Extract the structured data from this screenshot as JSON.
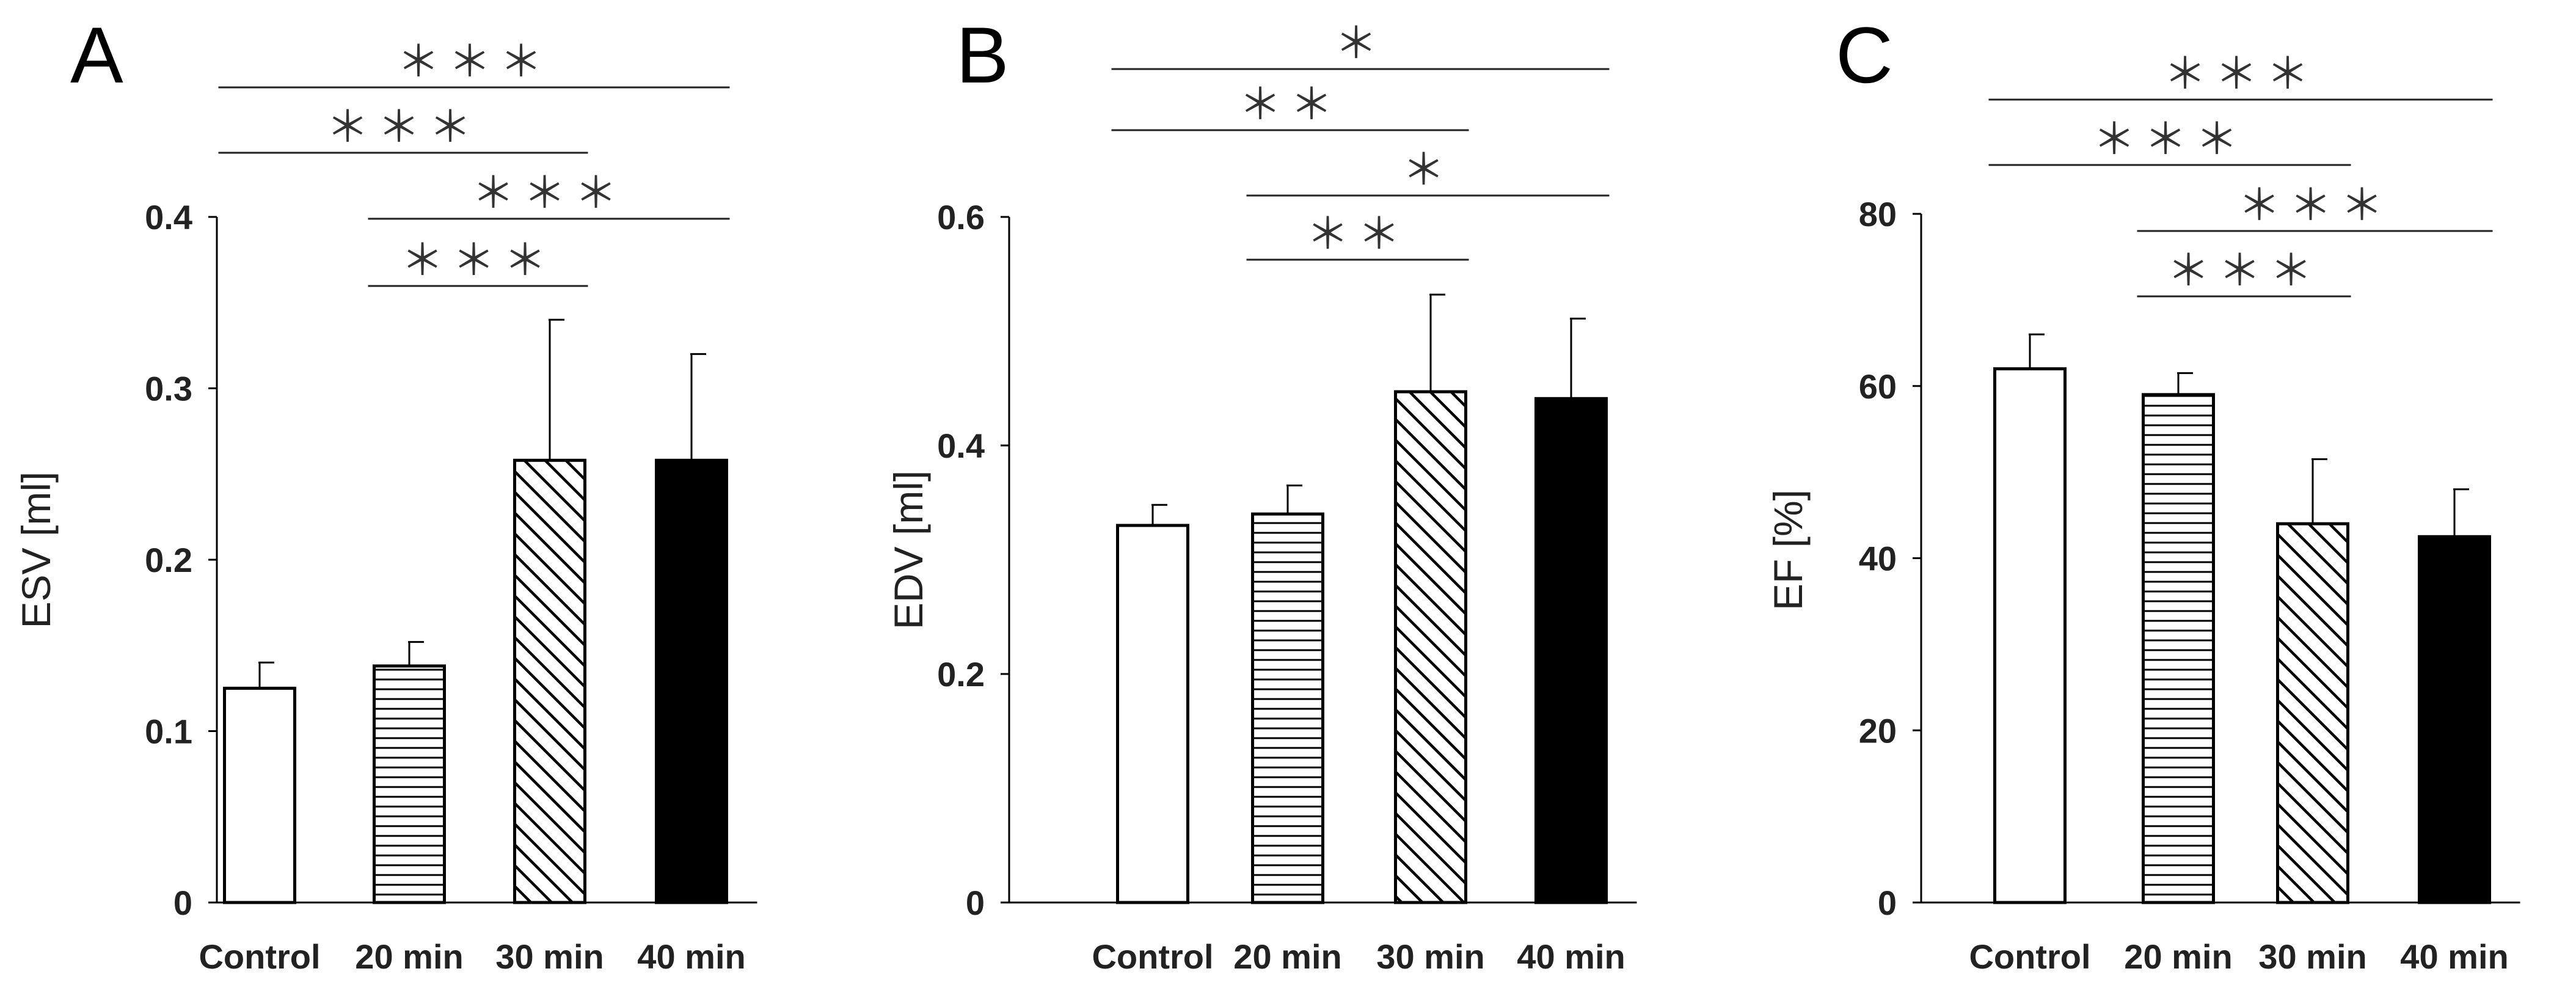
{
  "figure": {
    "colors": {
      "background": "#ffffff",
      "axis": "#000000",
      "significance_line": "#222222"
    }
  },
  "chart_data": [
    {
      "type": "bar",
      "panel": "A",
      "categories": [
        "Control",
        "20 min",
        "30 min",
        "40 min"
      ],
      "values": [
        0.125,
        0.138,
        0.258,
        0.258
      ],
      "errors": [
        0.015,
        0.014,
        0.082,
        0.062
      ],
      "fills": [
        "white",
        "horizontal-lines",
        "diagonal-lines",
        "black"
      ],
      "xlabel": "",
      "ylabel": "ESV [ml]",
      "ylim": [
        0,
        0.4
      ],
      "yticks": [
        0,
        0.1,
        0.2,
        0.3,
        0.4
      ],
      "ytick_labels": [
        "0",
        "0.1",
        "0.2",
        "0.3",
        "0.4"
      ],
      "significance": [
        {
          "from": 0,
          "to": 3,
          "label": "＊＊＊"
        },
        {
          "from": 0,
          "to": 2,
          "label": "＊＊＊"
        },
        {
          "from": 1,
          "to": 3,
          "label": "＊＊＊"
        },
        {
          "from": 1,
          "to": 2,
          "label": "＊＊＊"
        }
      ]
    },
    {
      "type": "bar",
      "panel": "B",
      "categories": [
        "Control",
        "20 min",
        "30 min",
        "40 min"
      ],
      "values": [
        0.33,
        0.34,
        0.447,
        0.441
      ],
      "errors": [
        0.018,
        0.025,
        0.085,
        0.07
      ],
      "fills": [
        "white",
        "horizontal-lines",
        "diagonal-lines",
        "black"
      ],
      "xlabel": "",
      "ylabel": "EDV [ml]",
      "ylim": [
        0,
        0.6
      ],
      "yticks": [
        0,
        0.2,
        0.4,
        0.6
      ],
      "ytick_labels": [
        "0",
        "0.2",
        "0.4",
        "0.6"
      ],
      "significance": [
        {
          "from": 0,
          "to": 3,
          "label": "＊"
        },
        {
          "from": 0,
          "to": 2,
          "label": "＊＊"
        },
        {
          "from": 1,
          "to": 3,
          "label": "＊"
        },
        {
          "from": 1,
          "to": 2,
          "label": "＊＊"
        }
      ]
    },
    {
      "type": "bar",
      "panel": "C",
      "categories": [
        "Control",
        "20 min",
        "30 min",
        "40 min"
      ],
      "values": [
        62,
        59,
        44,
        42.5
      ],
      "errors": [
        4,
        2.5,
        7.5,
        5.5
      ],
      "fills": [
        "white",
        "horizontal-lines",
        "diagonal-lines",
        "black"
      ],
      "xlabel": "",
      "ylabel": "EF [%]",
      "ylim": [
        0,
        80
      ],
      "yticks": [
        0,
        20,
        40,
        60,
        80
      ],
      "ytick_labels": [
        "0",
        "20",
        "40",
        "60",
        "80"
      ],
      "significance": [
        {
          "from": 0,
          "to": 3,
          "label": "＊＊＊"
        },
        {
          "from": 0,
          "to": 2,
          "label": "＊＊＊"
        },
        {
          "from": 1,
          "to": 3,
          "label": "＊＊＊"
        },
        {
          "from": 1,
          "to": 2,
          "label": "＊＊＊"
        }
      ]
    }
  ]
}
